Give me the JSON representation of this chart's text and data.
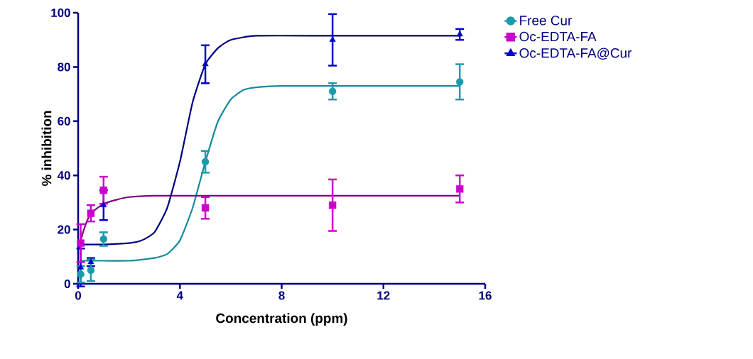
{
  "chart_data": {
    "type": "scatter",
    "xlabel": "Concentration (ppm)",
    "ylabel": "% inhibition",
    "xlim": [
      0,
      16
    ],
    "xticks": [
      0,
      4,
      8,
      12,
      16
    ],
    "ylim": [
      0,
      100
    ],
    "yticks": [
      0,
      20,
      40,
      60,
      80,
      100
    ],
    "grid": false,
    "legend": "top right",
    "series": [
      {
        "name": "Free Cur",
        "marker": "circle",
        "color": "#1a9bab",
        "x": [
          0.1,
          0.5,
          1,
          5,
          10,
          15
        ],
        "values": [
          3.5,
          5,
          16.5,
          45,
          71,
          74.5
        ],
        "errors": [
          3,
          4,
          2.5,
          4,
          3,
          6.5
        ]
      },
      {
        "name": "Oc-EDTA-FA",
        "marker": "square",
        "color": "#cc00cc",
        "x": [
          0.1,
          0.5,
          1,
          5,
          10,
          15
        ],
        "values": [
          15,
          26,
          34.5,
          28,
          29,
          35
        ],
        "errors": [
          7,
          3,
          5,
          4,
          9.5,
          5
        ]
      },
      {
        "name": "Oc-EDTA-FA@Cur",
        "marker": "triangle",
        "color": "#0000cc",
        "x": [
          0.1,
          0.5,
          1,
          5,
          10,
          15
        ],
        "values": [
          6,
          8,
          29,
          81,
          90,
          92
        ],
        "errors": [
          7,
          1.5,
          5.5,
          7,
          9.5,
          2
        ]
      },
      {
        "type": "line",
        "color": "#168a9a",
        "x": [
          0.1,
          1,
          2,
          3,
          3.5,
          4,
          4.5,
          5,
          5.5,
          6,
          6.5,
          7,
          8,
          10,
          15
        ],
        "values": [
          8.5,
          8.5,
          8.5,
          9.5,
          11,
          16,
          28,
          45,
          60,
          68,
          71.5,
          72.5,
          73,
          73,
          73
        ]
      },
      {
        "type": "line",
        "color": "#800080",
        "x": [
          0.05,
          0.1,
          0.3,
          0.5,
          1,
          1.5,
          2,
          3,
          5,
          10,
          15
        ],
        "values": [
          13,
          16,
          22,
          26,
          29.5,
          31,
          32,
          32.5,
          32.5,
          32.5,
          32.5
        ]
      },
      {
        "type": "line",
        "color": "#000080",
        "x": [
          0.1,
          1,
          2,
          2.5,
          3,
          3.5,
          4,
          4.5,
          5,
          5.5,
          6,
          7,
          10,
          15
        ],
        "values": [
          14.5,
          14.5,
          15,
          16,
          19,
          28,
          45,
          67,
          81,
          87,
          90,
          91.5,
          91.5,
          91.5
        ]
      }
    ]
  }
}
